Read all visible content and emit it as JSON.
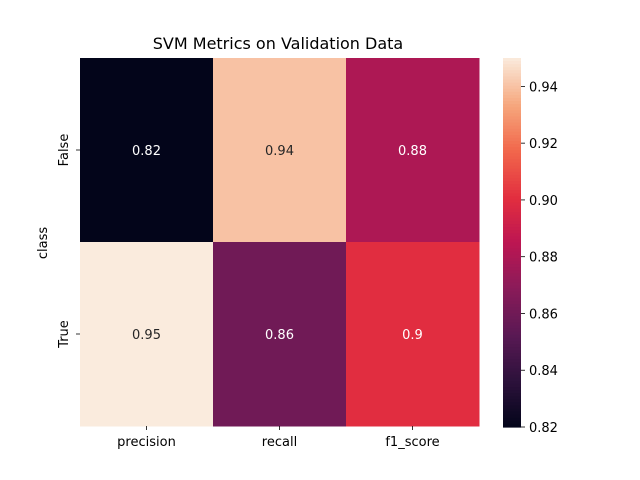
{
  "chart_data": {
    "type": "heatmap",
    "title": "SVM Metrics on Validation Data",
    "xlabel": "",
    "ylabel": "class",
    "x_categories": [
      "precision",
      "recall",
      "f1_score"
    ],
    "y_categories": [
      "False",
      "True"
    ],
    "values": [
      [
        0.82,
        0.94,
        0.88
      ],
      [
        0.95,
        0.86,
        0.9
      ]
    ],
    "cell_labels": [
      [
        "0.82",
        "0.94",
        "0.88"
      ],
      [
        "0.95",
        "0.86",
        "0.9"
      ]
    ],
    "colorbar": {
      "min": 0.82,
      "max": 0.95,
      "ticks": [
        "0.82",
        "0.84",
        "0.86",
        "0.88",
        "0.90",
        "0.92",
        "0.94"
      ],
      "tick_values": [
        0.82,
        0.84,
        0.86,
        0.88,
        0.9,
        0.92,
        0.94
      ]
    },
    "colormap": "rocket",
    "legend": "colorbar-right"
  }
}
